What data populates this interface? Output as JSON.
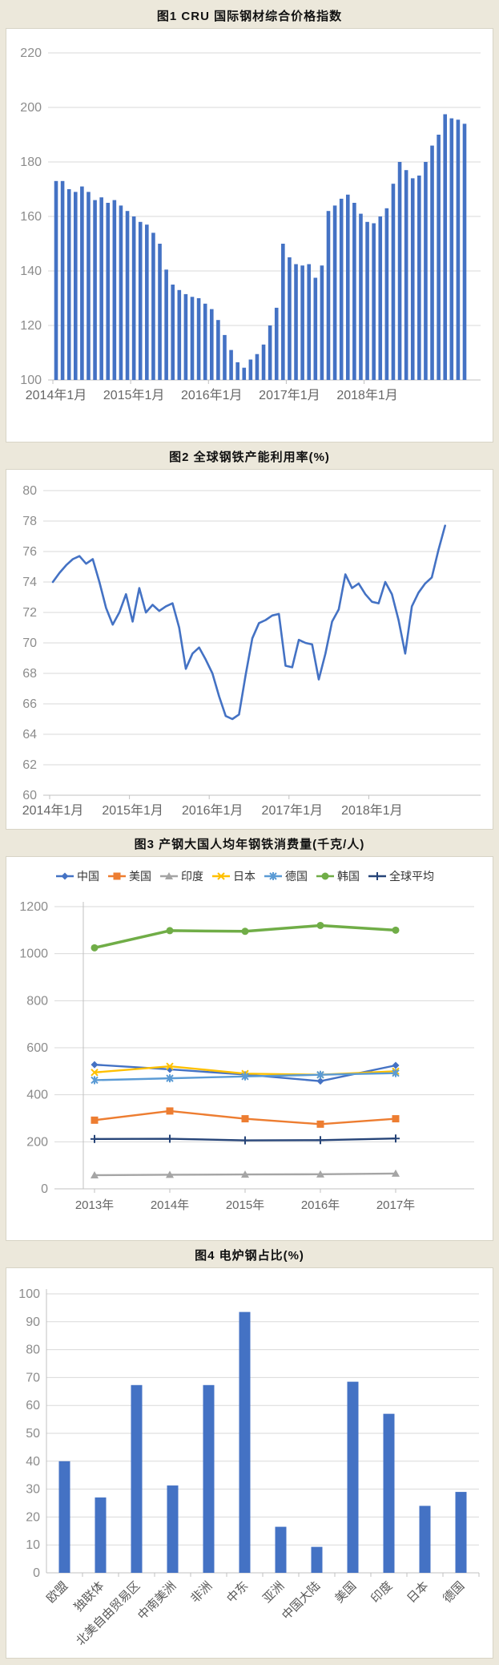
{
  "page": {
    "background": "#ECE8DB",
    "panel_background": "#FFFFFF",
    "panel_border": "#D8D4C6"
  },
  "colors": {
    "accent_blue": "#4472C4",
    "orange": "#ED7D31",
    "gray": "#A5A5A5",
    "yellow": "#FFC000",
    "light_blue": "#5B9BD5",
    "green": "#70AD47",
    "navy": "#264478",
    "grid": "#DADADA",
    "axis": "#C0C0C0",
    "tick_label": "#8C8C8C",
    "category_label": "#666666"
  },
  "chart_data": [
    {
      "id": "fig1",
      "type": "bar",
      "title": "图1  CRU 国际钢材综合价格指数",
      "x_tick_labels": [
        "2014年1月",
        "2015年1月",
        "2016年1月",
        "2017年1月",
        "2018年1月"
      ],
      "months_per_tick": 12,
      "ylim": [
        100,
        220
      ],
      "ytick_step": 20,
      "grid": true,
      "bar_color": "#4472C4",
      "values": [
        173,
        173,
        170,
        169,
        171,
        169,
        166,
        167,
        165,
        166,
        164,
        162,
        160,
        158,
        157,
        154,
        150,
        140.5,
        135,
        133,
        131.5,
        130.5,
        130,
        128,
        126,
        122,
        116.5,
        111,
        106.5,
        104.5,
        107.5,
        109.5,
        113,
        120,
        126.5,
        150,
        145,
        142.5,
        142,
        142.5,
        137.5,
        142,
        162,
        164,
        166.5,
        168,
        165,
        161,
        158,
        157.5,
        160,
        163,
        172,
        180,
        177,
        174,
        175,
        180,
        186,
        190,
        197.5,
        196,
        195.5,
        194
      ]
    },
    {
      "id": "fig2",
      "type": "line",
      "title": "图2  全球钢铁产能利用率(%)",
      "x_tick_labels": [
        "2014年1月",
        "2015年1月",
        "2016年1月",
        "2017年1月",
        "2018年1月"
      ],
      "months_per_tick": 12,
      "ylim": [
        60,
        80
      ],
      "ytick_step": 2,
      "grid": true,
      "line_color": "#4472C4",
      "values": [
        74.0,
        74.6,
        75.1,
        75.5,
        75.7,
        75.2,
        75.5,
        74.0,
        72.3,
        71.2,
        72.0,
        73.2,
        71.4,
        73.6,
        72.0,
        72.5,
        72.1,
        72.4,
        72.6,
        71.0,
        68.3,
        69.3,
        69.7,
        68.9,
        68.0,
        66.5,
        65.2,
        65.0,
        65.3,
        67.9,
        70.3,
        71.3,
        71.5,
        71.8,
        71.9,
        68.5,
        68.4,
        70.2,
        70.0,
        69.9,
        67.6,
        69.3,
        71.4,
        72.2,
        74.5,
        73.6,
        73.9,
        73.2,
        72.7,
        72.6,
        74.0,
        73.2,
        71.5,
        69.3,
        72.4,
        73.3,
        73.9,
        74.3,
        76.1,
        77.7
      ]
    },
    {
      "id": "fig3",
      "type": "multi-line",
      "title": "图3 产钢大国人均年钢铁消费量(千克/人)",
      "categories": [
        "2013年",
        "2014年",
        "2015年",
        "2016年",
        "2017年"
      ],
      "ylim": [
        0,
        1200
      ],
      "ytick_step": 200,
      "grid": true,
      "legend_position": "top",
      "series": [
        {
          "name": "中国",
          "color": "#4472C4",
          "marker": "diamond",
          "values": [
            528,
            508,
            486,
            458,
            525
          ]
        },
        {
          "name": "美国",
          "color": "#ED7D31",
          "marker": "square",
          "values": [
            292,
            331,
            298,
            275,
            298
          ]
        },
        {
          "name": "印度",
          "color": "#A5A5A5",
          "marker": "triangle",
          "values": [
            58,
            60,
            61,
            62,
            65
          ]
        },
        {
          "name": "日本",
          "color": "#FFC000",
          "marker": "x",
          "values": [
            495,
            521,
            490,
            485,
            500
          ]
        },
        {
          "name": "德国",
          "color": "#5B9BD5",
          "marker": "star",
          "values": [
            462,
            470,
            478,
            485,
            492
          ]
        },
        {
          "name": "韩国",
          "color": "#70AD47",
          "marker": "circle",
          "values": [
            1025,
            1098,
            1095,
            1120,
            1100
          ]
        },
        {
          "name": "全球平均",
          "color": "#264478",
          "marker": "plus",
          "values": [
            212,
            213,
            206,
            207,
            214
          ]
        }
      ]
    },
    {
      "id": "fig4",
      "type": "bar",
      "title": "图4  电炉钢占比(%)",
      "categories": [
        "欧盟",
        "独联体",
        "北美自由贸易区",
        "中南美洲",
        "非洲",
        "中东",
        "亚洲",
        "中国大陆",
        "美国",
        "印度",
        "日本",
        "德国"
      ],
      "ylim": [
        0,
        100
      ],
      "ytick_step": 10,
      "grid": true,
      "bar_color": "#4472C4",
      "values": [
        40,
        27,
        67.3,
        31.3,
        67.3,
        93.5,
        16.5,
        9.3,
        68.5,
        57,
        24,
        29
      ]
    }
  ]
}
